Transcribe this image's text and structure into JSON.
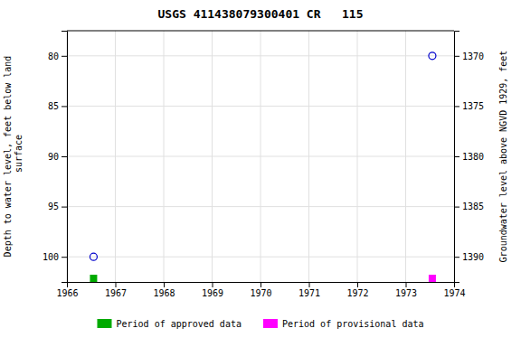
{
  "chart_data": {
    "type": "scatter",
    "title": "USGS 411438079300401 CR   115",
    "ylabel": "Depth to water level, feet below land\n surface",
    "y2label": "Groundwater level above NGVD 1929, feet",
    "xlim": [
      1966.0,
      1974.0
    ],
    "xticks": [
      1966,
      1967,
      1968,
      1969,
      1970,
      1971,
      1972,
      1973,
      1974
    ],
    "ylim": [
      102.5,
      77.5
    ],
    "yticks": [
      80,
      85,
      90,
      95,
      100
    ],
    "y2lim": [
      1392.5,
      1367.5
    ],
    "y2ticks": [
      1390,
      1385,
      1380,
      1375,
      1370
    ],
    "series": [
      {
        "color": "#0000cc",
        "marker": "open-circle",
        "x": [
          1966.55,
          1973.55
        ],
        "values": [
          100.0,
          80.0
        ]
      }
    ],
    "periods": [
      {
        "name": "Period of approved data",
        "color": "#00aa00",
        "x": 1966.55
      },
      {
        "name": "Period of provisional data",
        "color": "#ff00ff",
        "x": 1973.55
      }
    ],
    "grid": true,
    "legend": "bottom"
  }
}
